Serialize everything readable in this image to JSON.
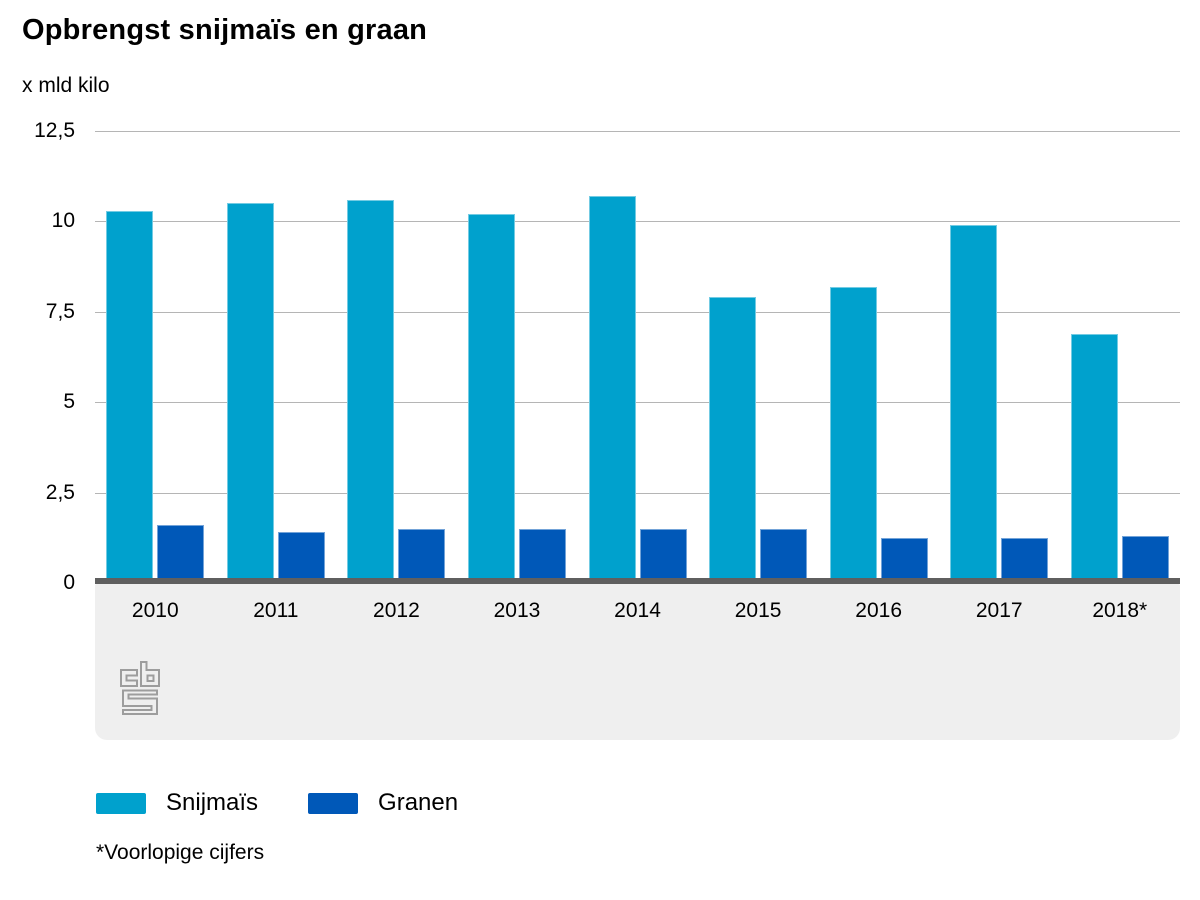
{
  "header": {
    "title": "Opbrengst snijmaïs en graan",
    "unit_label": "x mld kilo"
  },
  "chart_data": {
    "type": "bar",
    "title": "Opbrengst snijmaïs en graan",
    "ylabel": "x mld kilo",
    "xlabel": "",
    "categories": [
      "2010",
      "2011",
      "2012",
      "2013",
      "2014",
      "2015",
      "2016",
      "2017",
      "2018*"
    ],
    "series": [
      {
        "name": "Snijmaïs",
        "color": "#00a1cd",
        "values": [
          10.3,
          10.5,
          10.6,
          10.2,
          10.7,
          7.9,
          8.2,
          9.9,
          6.9
        ]
      },
      {
        "name": "Granen",
        "color": "#0058b8",
        "values": [
          1.6,
          1.4,
          1.5,
          1.5,
          1.5,
          1.5,
          1.25,
          1.25,
          1.3
        ]
      }
    ],
    "ylim": [
      0,
      12.5
    ],
    "yticks": [
      {
        "value": 12.5,
        "label": "12,5"
      },
      {
        "value": 10,
        "label": "10"
      },
      {
        "value": 7.5,
        "label": "7,5"
      },
      {
        "value": 5,
        "label": "5"
      },
      {
        "value": 2.5,
        "label": "2,5"
      },
      {
        "value": 0,
        "label": "0"
      }
    ],
    "grid": true,
    "legend_position": "bottom"
  },
  "legend": {
    "items": [
      {
        "label": "Snijmaïs",
        "color": "#00a1cd"
      },
      {
        "label": "Granen",
        "color": "#0058b8"
      }
    ]
  },
  "footnote": "*Voorlopige cijfers",
  "branding": {
    "logo": "cbs-logo"
  },
  "colors": {
    "snijmais": "#00a1cd",
    "granen": "#0058b8",
    "gridline": "#b5b5b5",
    "axis_line": "#5f5f5f",
    "footer_bg": "#efefef",
    "logo_gray": "#9d9d9d",
    "text": "#000000"
  }
}
